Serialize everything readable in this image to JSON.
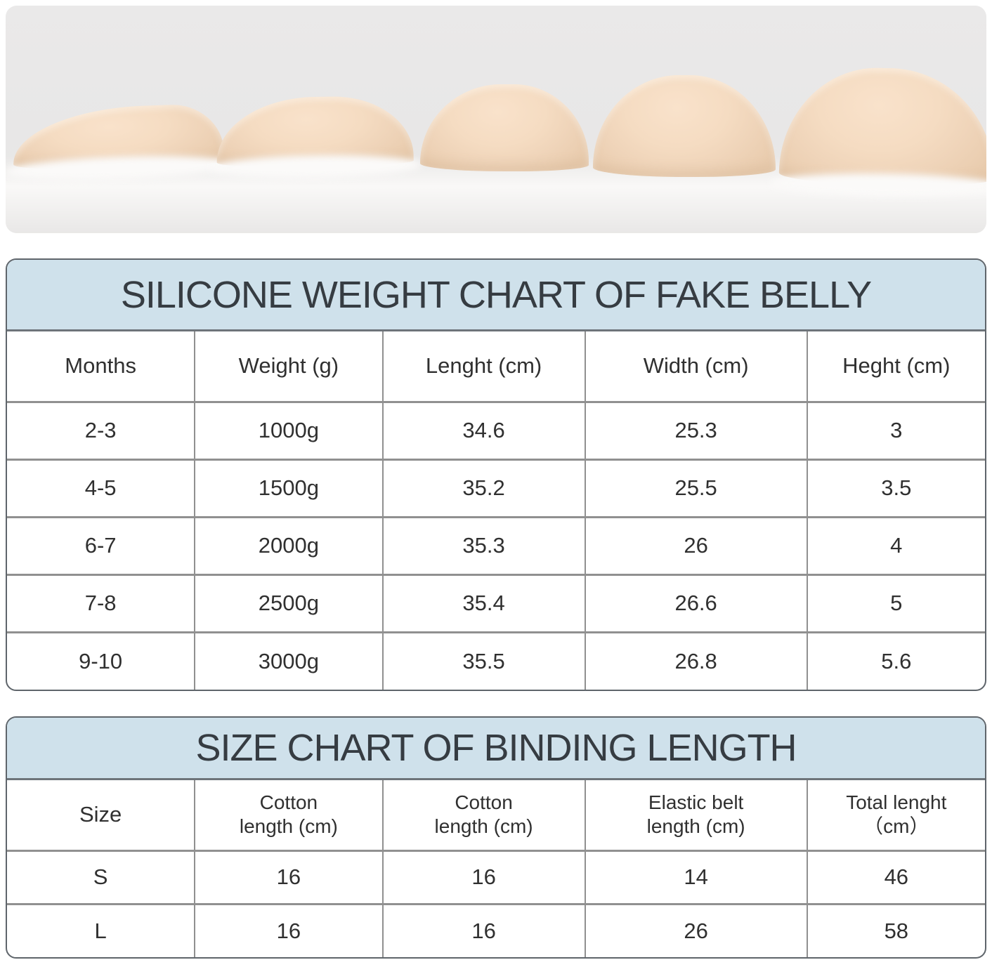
{
  "photo": {
    "description": "Five silicone fake belly pads arranged left to right in increasing size on a light grey surface",
    "background_color": "#e8e7e7",
    "pad_color": "#f3d9bf",
    "pad_count": 5
  },
  "weight_chart": {
    "title": "SILICONE WEIGHT CHART OF FAKE BELLY",
    "header_bg": "#cfe1eb",
    "columns": [
      "Months",
      "Weight (g)",
      "Lenght (cm)",
      "Width (cm)",
      "Heght (cm)"
    ],
    "rows": [
      [
        "2-3",
        "1000g",
        "34.6",
        "25.3",
        "3"
      ],
      [
        "4-5",
        "1500g",
        "35.2",
        "25.5",
        "3.5"
      ],
      [
        "6-7",
        "2000g",
        "35.3",
        "26",
        "4"
      ],
      [
        "7-8",
        "2500g",
        "35.4",
        "26.6",
        "5"
      ],
      [
        "9-10",
        "3000g",
        "35.5",
        "26.8",
        "5.6"
      ]
    ]
  },
  "size_chart": {
    "title": "SIZE CHART OF BINDING LENGTH",
    "header_bg": "#cfe1eb",
    "columns": [
      [
        "Size",
        ""
      ],
      [
        "Cotton",
        "length (cm)"
      ],
      [
        "Cotton",
        "length (cm)"
      ],
      [
        "Elastic belt",
        "length (cm)"
      ],
      [
        "Total lenght",
        "（cm）"
      ]
    ],
    "rows": [
      [
        "S",
        "16",
        "16",
        "14",
        "46"
      ],
      [
        "L",
        "16",
        "16",
        "26",
        "58"
      ]
    ]
  },
  "chart_data": [
    {
      "type": "table",
      "title": "SILICONE WEIGHT CHART OF FAKE BELLY",
      "columns": [
        "Months",
        "Weight (g)",
        "Lenght (cm)",
        "Width (cm)",
        "Heght (cm)"
      ],
      "rows": [
        [
          "2-3",
          "1000g",
          34.6,
          25.3,
          3
        ],
        [
          "4-5",
          "1500g",
          35.2,
          25.5,
          3.5
        ],
        [
          "6-7",
          "2000g",
          35.3,
          26,
          4
        ],
        [
          "7-8",
          "2500g",
          35.4,
          26.6,
          5
        ],
        [
          "9-10",
          "3000g",
          35.5,
          26.8,
          5.6
        ]
      ]
    },
    {
      "type": "table",
      "title": "SIZE CHART OF BINDING LENGTH",
      "columns": [
        "Size",
        "Cotton length (cm)",
        "Cotton length (cm)",
        "Elastic belt length (cm)",
        "Total lenght （cm）"
      ],
      "rows": [
        [
          "S",
          16,
          16,
          14,
          46
        ],
        [
          "L",
          16,
          16,
          26,
          58
        ]
      ]
    }
  ]
}
